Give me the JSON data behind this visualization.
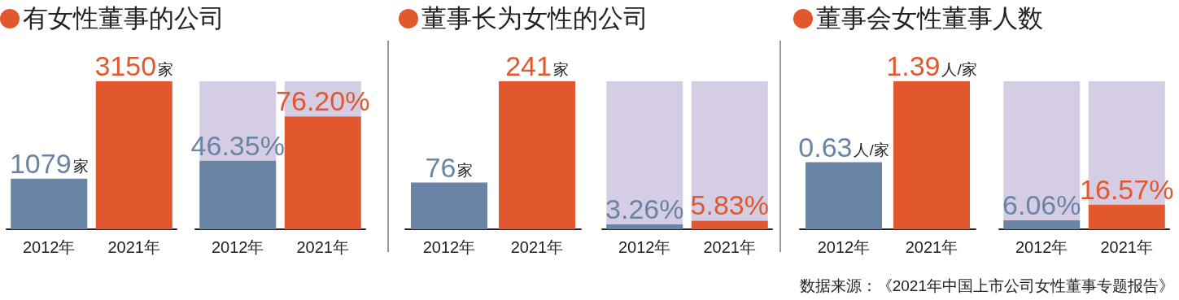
{
  "chart_data": [
    {
      "type": "bar",
      "title": "有女性董事的公司",
      "categories": [
        "2012年",
        "2021年"
      ],
      "series": [
        {
          "colors": [
            "#6a84a6",
            "#e1572e"
          ],
          "values": [
            1079,
            3150
          ],
          "value_labels": [
            "1079家",
            "3150家"
          ]
        }
      ]
    },
    {
      "type": "bar",
      "stacked": true,
      "categories": [
        "2012年",
        "2021年"
      ],
      "series": [
        {
          "colors": [
            "#6a84a6",
            "#e1572e"
          ],
          "values": [
            46.35,
            76.2
          ],
          "value_labels": [
            "46.35%",
            "76.20%"
          ]
        },
        {
          "color": "#d5cde3",
          "values": [
            53.65,
            23.8
          ]
        }
      ]
    },
    {
      "type": "bar",
      "title": "董事长为女性的公司",
      "categories": [
        "2012年",
        "2021年"
      ],
      "series": [
        {
          "colors": [
            "#6a84a6",
            "#e1572e"
          ],
          "values": [
            76,
            241
          ],
          "value_labels": [
            "76家",
            "241家"
          ]
        }
      ]
    },
    {
      "type": "bar",
      "stacked": true,
      "categories": [
        "2012年",
        "2021年"
      ],
      "series": [
        {
          "colors": [
            "#6a84a6",
            "#e1572e"
          ],
          "values": [
            3.26,
            5.83
          ],
          "value_labels": [
            "3.26%",
            "5.83%"
          ]
        },
        {
          "color": "#d5cde3",
          "values": [
            96.74,
            94.17
          ]
        }
      ]
    },
    {
      "type": "bar",
      "title": "董事会女性董事人数",
      "categories": [
        "2012年",
        "2021年"
      ],
      "series": [
        {
          "colors": [
            "#6a84a6",
            "#e1572e"
          ],
          "values": [
            0.63,
            1.39
          ],
          "value_labels": [
            "0.63人/家",
            "1.39人/家"
          ]
        }
      ]
    },
    {
      "type": "bar",
      "stacked": true,
      "categories": [
        "2012年",
        "2021年"
      ],
      "annotations": [
        "数据来源：《2021年中国上市公司女性董事专题报告》"
      ],
      "series": [
        {
          "colors": [
            "#6a84a6",
            "#e1572e"
          ],
          "values": [
            6.06,
            16.57
          ],
          "value_labels": [
            "6.06%",
            "16.57%"
          ]
        },
        {
          "color": "#d5cde3",
          "values": [
            93.94,
            83.43
          ]
        }
      ]
    }
  ]
}
